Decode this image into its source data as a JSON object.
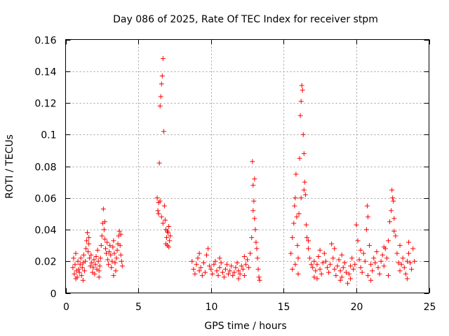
{
  "chart_data": {
    "type": "scatter",
    "title": "Day 086 of 2025, Rate Of TEC Index for receiver stpm",
    "xlabel": "GPS time / hours",
    "ylabel": "ROTI / TECUs",
    "xlim": [
      0,
      25
    ],
    "ylim": [
      0,
      0.16
    ],
    "xticks": [
      0,
      5,
      10,
      15,
      20,
      25
    ],
    "xtick_labels": [
      "0",
      "5",
      "10",
      "15",
      "20",
      "25"
    ],
    "yticks": [
      0,
      0.02,
      0.04,
      0.06,
      0.08,
      0.1,
      0.12,
      0.14,
      0.16
    ],
    "ytick_labels": [
      "0",
      "0.02",
      "0.04",
      "0.06",
      "0.08",
      "0.1",
      "0.12",
      "0.14",
      "0.16"
    ],
    "grid": true,
    "marker": "+",
    "color": "#ff0000",
    "series": [
      {
        "name": "ROTI",
        "points": [
          [
            0.5,
            0.016
          ],
          [
            0.55,
            0.022
          ],
          [
            0.6,
            0.012
          ],
          [
            0.65,
            0.018
          ],
          [
            0.7,
            0.025
          ],
          [
            0.75,
            0.014
          ],
          [
            0.8,
            0.01
          ],
          [
            0.85,
            0.02
          ],
          [
            0.9,
            0.015
          ],
          [
            0.95,
            0.013
          ],
          [
            1.0,
            0.018
          ],
          [
            1.05,
            0.022
          ],
          [
            1.1,
            0.011
          ],
          [
            1.15,
            0.016
          ],
          [
            1.2,
            0.019
          ],
          [
            1.25,
            0.024
          ],
          [
            1.3,
            0.014
          ],
          [
            1.35,
            0.02
          ],
          [
            1.4,
            0.028
          ],
          [
            1.45,
            0.033
          ],
          [
            1.5,
            0.038
          ],
          [
            1.55,
            0.026
          ],
          [
            1.6,
            0.031
          ],
          [
            1.65,
            0.022
          ],
          [
            1.7,
            0.017
          ],
          [
            1.75,
            0.024
          ],
          [
            1.8,
            0.019
          ],
          [
            1.85,
            0.013
          ],
          [
            1.9,
            0.016
          ],
          [
            1.95,
            0.021
          ],
          [
            2.0,
            0.012
          ],
          [
            2.05,
            0.018
          ],
          [
            2.1,
            0.023
          ],
          [
            2.15,
            0.015
          ],
          [
            2.2,
            0.027
          ],
          [
            2.25,
            0.02
          ],
          [
            2.3,
            0.014
          ],
          [
            2.35,
            0.017
          ],
          [
            2.4,
            0.022
          ],
          [
            2.45,
            0.03
          ],
          [
            2.5,
            0.036
          ],
          [
            2.55,
            0.044
          ],
          [
            2.6,
            0.053
          ],
          [
            2.65,
            0.04
          ],
          [
            2.7,
            0.034
          ],
          [
            2.75,
            0.028
          ],
          [
            2.8,
            0.025
          ],
          [
            2.85,
            0.032
          ],
          [
            2.9,
            0.021
          ],
          [
            2.95,
            0.018
          ],
          [
            3.0,
            0.026
          ],
          [
            3.05,
            0.03
          ],
          [
            3.1,
            0.024
          ],
          [
            3.15,
            0.016
          ],
          [
            3.2,
            0.02
          ],
          [
            3.25,
            0.029
          ],
          [
            3.3,
            0.033
          ],
          [
            3.35,
            0.025
          ],
          [
            3.4,
            0.019
          ],
          [
            3.45,
            0.014
          ],
          [
            3.5,
            0.022
          ],
          [
            3.55,
            0.027
          ],
          [
            3.6,
            0.031
          ],
          [
            3.65,
            0.036
          ],
          [
            3.7,
            0.039
          ],
          [
            3.75,
            0.03
          ],
          [
            3.8,
            0.024
          ],
          [
            3.85,
            0.02
          ],
          [
            3.9,
            0.017
          ],
          [
            0.7,
            0.009
          ],
          [
            1.2,
            0.008
          ],
          [
            2.3,
            0.01
          ],
          [
            3.3,
            0.011
          ],
          [
            1.6,
            0.035
          ],
          [
            2.7,
            0.045
          ],
          [
            3.8,
            0.037
          ],
          [
            6.3,
            0.06
          ],
          [
            6.35,
            0.052
          ],
          [
            6.4,
            0.057
          ],
          [
            6.45,
            0.082
          ],
          [
            6.5,
            0.118
          ],
          [
            6.55,
            0.124
          ],
          [
            6.6,
            0.132
          ],
          [
            6.65,
            0.137
          ],
          [
            6.7,
            0.148
          ],
          [
            6.75,
            0.102
          ],
          [
            6.8,
            0.055
          ],
          [
            6.85,
            0.046
          ],
          [
            6.9,
            0.04
          ],
          [
            6.95,
            0.035
          ],
          [
            7.0,
            0.03
          ],
          [
            7.05,
            0.038
          ],
          [
            7.1,
            0.042
          ],
          [
            7.15,
            0.033
          ],
          [
            7.2,
            0.036
          ],
          [
            6.4,
            0.05
          ],
          [
            6.6,
            0.048
          ],
          [
            6.9,
            0.031
          ],
          [
            7.1,
            0.029
          ],
          [
            6.5,
            0.058
          ],
          [
            6.7,
            0.044
          ],
          [
            7.0,
            0.039
          ],
          [
            8.7,
            0.02
          ],
          [
            8.8,
            0.015
          ],
          [
            8.9,
            0.012
          ],
          [
            9.0,
            0.018
          ],
          [
            9.1,
            0.022
          ],
          [
            9.2,
            0.014
          ],
          [
            9.3,
            0.016
          ],
          [
            9.4,
            0.011
          ],
          [
            9.5,
            0.019
          ],
          [
            9.6,
            0.013
          ],
          [
            9.7,
            0.024
          ],
          [
            9.8,
            0.028
          ],
          [
            9.9,
            0.017
          ],
          [
            10.0,
            0.015
          ],
          [
            10.1,
            0.012
          ],
          [
            10.2,
            0.018
          ],
          [
            10.3,
            0.02
          ],
          [
            10.4,
            0.014
          ],
          [
            10.5,
            0.011
          ],
          [
            10.6,
            0.016
          ],
          [
            10.7,
            0.019
          ],
          [
            10.8,
            0.013
          ],
          [
            10.9,
            0.01
          ],
          [
            11.0,
            0.015
          ],
          [
            11.1,
            0.018
          ],
          [
            11.2,
            0.012
          ],
          [
            11.3,
            0.014
          ],
          [
            11.4,
            0.017
          ],
          [
            11.5,
            0.011
          ],
          [
            11.6,
            0.013
          ],
          [
            11.7,
            0.016
          ],
          [
            11.8,
            0.019
          ],
          [
            11.9,
            0.014
          ],
          [
            12.0,
            0.012
          ],
          [
            12.1,
            0.017
          ],
          [
            12.2,
            0.015
          ],
          [
            12.3,
            0.011
          ],
          [
            12.4,
            0.018
          ],
          [
            12.5,
            0.021
          ],
          [
            12.6,
            0.016
          ],
          [
            12.7,
            0.025
          ],
          [
            12.8,
            0.035
          ],
          [
            12.85,
            0.083
          ],
          [
            12.9,
            0.068
          ],
          [
            12.95,
            0.058
          ],
          [
            13.0,
            0.047
          ],
          [
            13.05,
            0.04
          ],
          [
            13.1,
            0.032
          ],
          [
            13.15,
            0.028
          ],
          [
            13.2,
            0.022
          ],
          [
            13.25,
            0.015
          ],
          [
            13.3,
            0.01
          ],
          [
            13.35,
            0.008
          ],
          [
            9.2,
            0.025
          ],
          [
            10.6,
            0.022
          ],
          [
            11.9,
            0.009
          ],
          [
            12.3,
            0.023
          ],
          [
            13.0,
            0.072
          ],
          [
            12.9,
            0.052
          ],
          [
            15.5,
            0.025
          ],
          [
            15.6,
            0.035
          ],
          [
            15.7,
            0.044
          ],
          [
            15.75,
            0.055
          ],
          [
            15.8,
            0.06
          ],
          [
            15.85,
            0.075
          ],
          [
            15.9,
            0.048
          ],
          [
            15.95,
            0.03
          ],
          [
            16.0,
            0.022
          ],
          [
            16.05,
            0.05
          ],
          [
            16.1,
            0.085
          ],
          [
            16.15,
            0.112
          ],
          [
            16.2,
            0.121
          ],
          [
            16.25,
            0.131
          ],
          [
            16.3,
            0.128
          ],
          [
            16.35,
            0.1
          ],
          [
            16.4,
            0.088
          ],
          [
            16.45,
            0.07
          ],
          [
            16.5,
            0.062
          ],
          [
            16.55,
            0.043
          ],
          [
            16.6,
            0.035
          ],
          [
            16.7,
            0.028
          ],
          [
            16.8,
            0.022
          ],
          [
            16.9,
            0.018
          ],
          [
            17.0,
            0.016
          ],
          [
            17.1,
            0.02
          ],
          [
            17.2,
            0.014
          ],
          [
            17.3,
            0.018
          ],
          [
            17.4,
            0.023
          ],
          [
            17.5,
            0.015
          ],
          [
            17.6,
            0.012
          ],
          [
            17.7,
            0.019
          ],
          [
            17.8,
            0.025
          ],
          [
            17.9,
            0.02
          ],
          [
            18.0,
            0.016
          ],
          [
            18.1,
            0.013
          ],
          [
            18.2,
            0.018
          ],
          [
            18.3,
            0.031
          ],
          [
            18.4,
            0.022
          ],
          [
            18.5,
            0.015
          ],
          [
            18.6,
            0.011
          ],
          [
            18.7,
            0.017
          ],
          [
            18.8,
            0.021
          ],
          [
            18.9,
            0.014
          ],
          [
            19.0,
            0.01
          ],
          [
            19.1,
            0.016
          ],
          [
            19.2,
            0.019
          ],
          [
            19.3,
            0.013
          ],
          [
            19.4,
            0.006
          ],
          [
            19.5,
            0.012
          ],
          [
            19.6,
            0.017
          ],
          [
            19.7,
            0.022
          ],
          [
            19.8,
            0.015
          ],
          [
            19.9,
            0.018
          ],
          [
            20.0,
            0.043
          ],
          [
            20.1,
            0.033
          ],
          [
            20.2,
            0.021
          ],
          [
            20.3,
            0.016
          ],
          [
            20.4,
            0.013
          ],
          [
            20.5,
            0.025
          ],
          [
            20.6,
            0.02
          ],
          [
            20.7,
            0.04
          ],
          [
            20.75,
            0.055
          ],
          [
            20.8,
            0.048
          ],
          [
            20.9,
            0.03
          ],
          [
            21.0,
            0.018
          ],
          [
            21.1,
            0.014
          ],
          [
            21.2,
            0.022
          ],
          [
            21.3,
            0.019
          ],
          [
            21.4,
            0.026
          ],
          [
            21.5,
            0.016
          ],
          [
            21.6,
            0.012
          ],
          [
            21.7,
            0.02
          ],
          [
            21.8,
            0.024
          ],
          [
            21.9,
            0.017
          ],
          [
            22.0,
            0.028
          ],
          [
            22.1,
            0.022
          ],
          [
            22.2,
            0.033
          ],
          [
            22.3,
            0.045
          ],
          [
            22.4,
            0.052
          ],
          [
            22.45,
            0.065
          ],
          [
            22.5,
            0.06
          ],
          [
            22.55,
            0.058
          ],
          [
            22.6,
            0.047
          ],
          [
            22.7,
            0.036
          ],
          [
            22.8,
            0.025
          ],
          [
            22.9,
            0.019
          ],
          [
            23.0,
            0.014
          ],
          [
            23.1,
            0.018
          ],
          [
            23.2,
            0.022
          ],
          [
            23.3,
            0.016
          ],
          [
            23.4,
            0.012
          ],
          [
            23.5,
            0.02
          ],
          [
            23.6,
            0.025
          ],
          [
            23.7,
            0.019
          ],
          [
            23.8,
            0.015
          ],
          [
            23.9,
            0.028
          ],
          [
            24.0,
            0.02
          ],
          [
            16.2,
            0.06
          ],
          [
            16.4,
            0.065
          ],
          [
            17.1,
            0.01
          ],
          [
            18.9,
            0.008
          ],
          [
            19.6,
            0.009
          ],
          [
            21.0,
            0.008
          ],
          [
            22.2,
            0.011
          ],
          [
            23.5,
            0.009
          ],
          [
            16.0,
            0.012
          ],
          [
            15.6,
            0.015
          ],
          [
            17.5,
            0.027
          ],
          [
            18.5,
            0.028
          ],
          [
            20.3,
            0.027
          ],
          [
            21.9,
            0.029
          ],
          [
            23.0,
            0.03
          ],
          [
            19.0,
            0.024
          ],
          [
            16.7,
            0.033
          ],
          [
            17.3,
            0.009
          ],
          [
            20.8,
            0.011
          ],
          [
            22.6,
            0.039
          ],
          [
            23.6,
            0.032
          ],
          [
            15.8,
            0.018
          ]
        ]
      }
    ]
  }
}
